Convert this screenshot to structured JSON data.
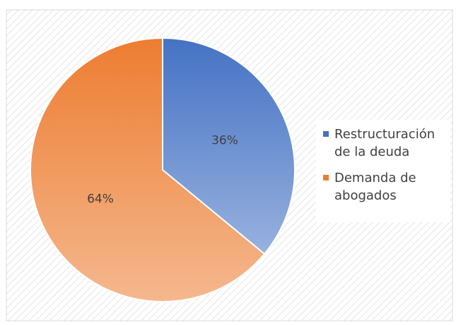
{
  "chart_data": {
    "type": "pie",
    "categories": [
      "Restructuración de la deuda",
      "Demanda de abogados"
    ],
    "values": [
      36,
      64
    ],
    "value_labels": [
      "36%",
      "64%"
    ],
    "colors": [
      "#4472c4",
      "#ed7d31"
    ],
    "legend": "right"
  }
}
